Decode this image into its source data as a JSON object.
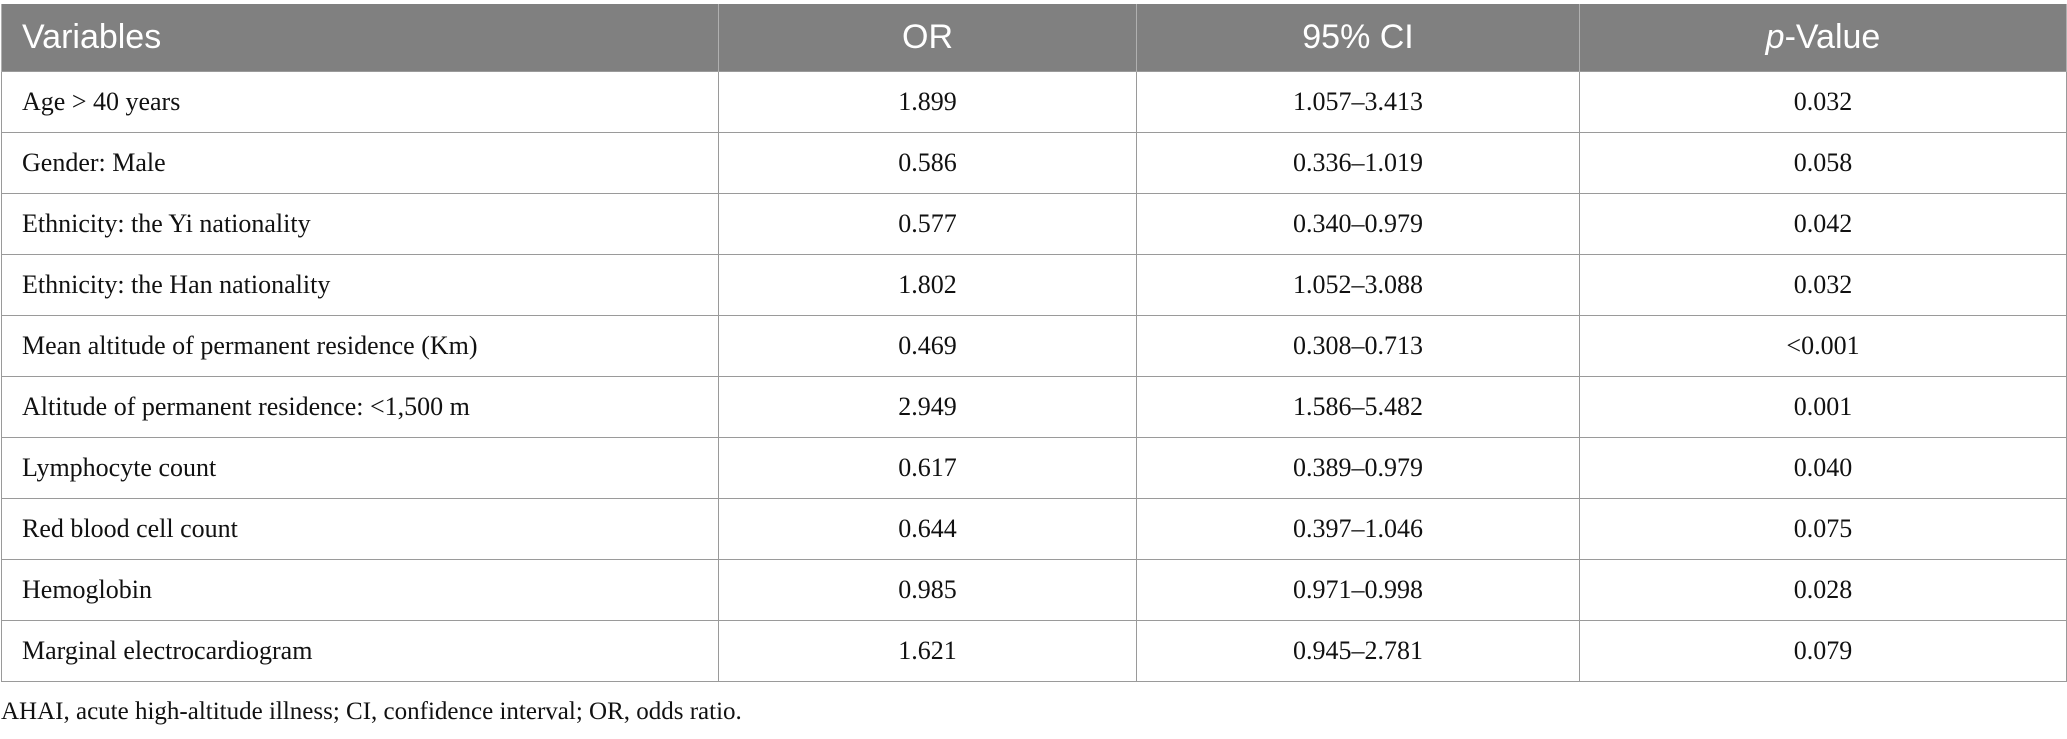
{
  "table": {
    "headers": {
      "variables": "Variables",
      "or": "OR",
      "ci": "95% CI",
      "p_prefix": "p",
      "p_suffix": "-Value"
    },
    "rows": [
      {
        "variable": "Age > 40 years",
        "or": "1.899",
        "ci": "1.057–3.413",
        "p": "0.032"
      },
      {
        "variable": "Gender: Male",
        "or": "0.586",
        "ci": "0.336–1.019",
        "p": "0.058"
      },
      {
        "variable": "Ethnicity: the Yi nationality",
        "or": "0.577",
        "ci": "0.340–0.979",
        "p": "0.042"
      },
      {
        "variable": "Ethnicity: the Han nationality",
        "or": "1.802",
        "ci": "1.052–3.088",
        "p": "0.032"
      },
      {
        "variable": "Mean altitude of permanent residence (Km)",
        "or": "0.469",
        "ci": "0.308–0.713",
        "p": "<0.001"
      },
      {
        "variable": "Altitude of permanent residence: <1,500 m",
        "or": "2.949",
        "ci": "1.586–5.482",
        "p": "0.001"
      },
      {
        "variable": "Lymphocyte count",
        "or": "0.617",
        "ci": "0.389–0.979",
        "p": "0.040"
      },
      {
        "variable": "Red blood cell count",
        "or": "0.644",
        "ci": "0.397–1.046",
        "p": "0.075"
      },
      {
        "variable": "Hemoglobin",
        "or": "0.985",
        "ci": "0.971–0.998",
        "p": "0.028"
      },
      {
        "variable": "Marginal electrocardiogram",
        "or": "1.621",
        "ci": "0.945–2.781",
        "p": "0.079"
      }
    ]
  },
  "footnote": "AHAI, acute high-altitude illness; CI, confidence interval; OR, odds ratio."
}
